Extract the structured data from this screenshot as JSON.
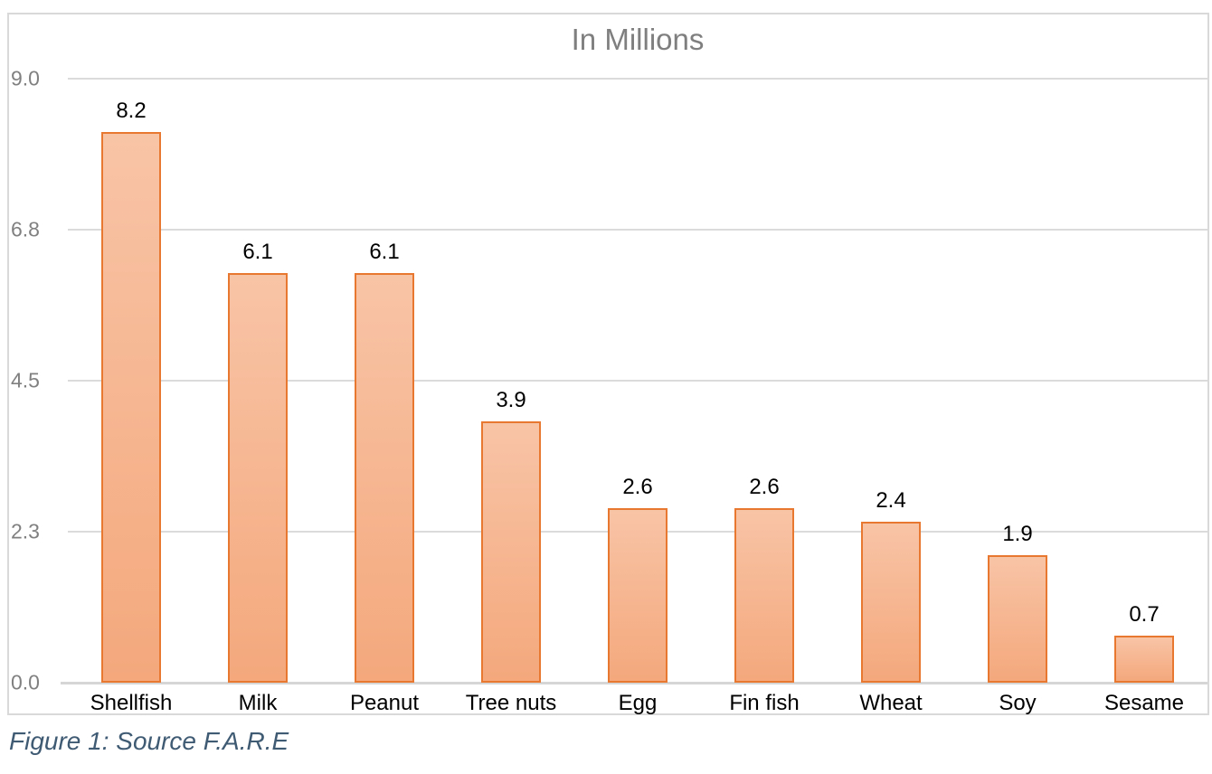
{
  "title": "In Millions",
  "caption": "Figure 1: Source F.A.R.E",
  "y_axis": {
    "ticks": [
      "9.0",
      "6.8",
      "4.5",
      "2.3",
      "0.0"
    ],
    "max": 9.0
  },
  "chart_data": {
    "type": "bar",
    "title": "In Millions",
    "categories": [
      "Shellfish",
      "Milk",
      "Peanut",
      "Tree nuts",
      "Egg",
      "Fin fish",
      "Wheat",
      "Soy",
      "Sesame"
    ],
    "values": [
      8.2,
      6.1,
      6.1,
      3.9,
      2.6,
      2.6,
      2.4,
      1.9,
      0.7
    ],
    "data_labels": [
      "8.2",
      "6.1",
      "6.1",
      "3.9",
      "2.6",
      "2.6",
      "2.4",
      "1.9",
      "0.7"
    ],
    "xlabel": "",
    "ylabel": "",
    "ylim": [
      0,
      9
    ],
    "y_tick_labels": [
      "0.0",
      "2.3",
      "4.5",
      "6.8",
      "9.0"
    ],
    "grid": true,
    "legend": false,
    "annotation": "Figure 1: Source F.A.R.E"
  },
  "colors": {
    "bar_fill_top": "#F8C4A6",
    "bar_fill_bottom": "#F4A87C",
    "bar_border": "#E8782F",
    "gridline": "#DBDBDB",
    "axis_line": "#D6D6D6",
    "tick_label": "#808080",
    "title_color": "#7F7F7F",
    "data_label": "#000000",
    "caption_color": "#3F5A73",
    "frame_border": "#D9D9D9"
  }
}
